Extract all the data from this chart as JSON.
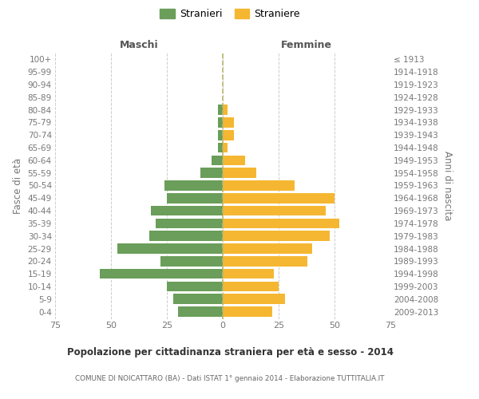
{
  "age_groups": [
    "0-4",
    "5-9",
    "10-14",
    "15-19",
    "20-24",
    "25-29",
    "30-34",
    "35-39",
    "40-44",
    "45-49",
    "50-54",
    "55-59",
    "60-64",
    "65-69",
    "70-74",
    "75-79",
    "80-84",
    "85-89",
    "90-94",
    "95-99",
    "100+"
  ],
  "birth_years": [
    "2009-2013",
    "2004-2008",
    "1999-2003",
    "1994-1998",
    "1989-1993",
    "1984-1988",
    "1979-1983",
    "1974-1978",
    "1969-1973",
    "1964-1968",
    "1959-1963",
    "1954-1958",
    "1949-1953",
    "1944-1948",
    "1939-1943",
    "1934-1938",
    "1929-1933",
    "1924-1928",
    "1919-1923",
    "1914-1918",
    "≤ 1913"
  ],
  "males": [
    20,
    22,
    25,
    55,
    28,
    47,
    33,
    30,
    32,
    25,
    26,
    10,
    5,
    2,
    2,
    2,
    2,
    0,
    0,
    0,
    0
  ],
  "females": [
    22,
    28,
    25,
    23,
    38,
    40,
    48,
    52,
    46,
    50,
    32,
    15,
    10,
    2,
    5,
    5,
    2,
    0,
    0,
    0,
    0
  ],
  "male_color": "#6a9e5a",
  "female_color": "#f5b731",
  "title": "Popolazione per cittadinanza straniera per età e sesso - 2014",
  "subtitle": "COMUNE DI NOICATTARO (BA) - Dati ISTAT 1° gennaio 2014 - Elaborazione TUTTITALIA.IT",
  "xlabel_left": "Maschi",
  "xlabel_right": "Femmine",
  "ylabel_left": "Fasce di età",
  "ylabel_right": "Anni di nascita",
  "legend_male": "Stranieri",
  "legend_female": "Straniere",
  "xlim": 75,
  "bg_color": "#ffffff",
  "grid_color": "#cccccc",
  "label_color": "#777777",
  "center_line_color": "#aaaaaa"
}
